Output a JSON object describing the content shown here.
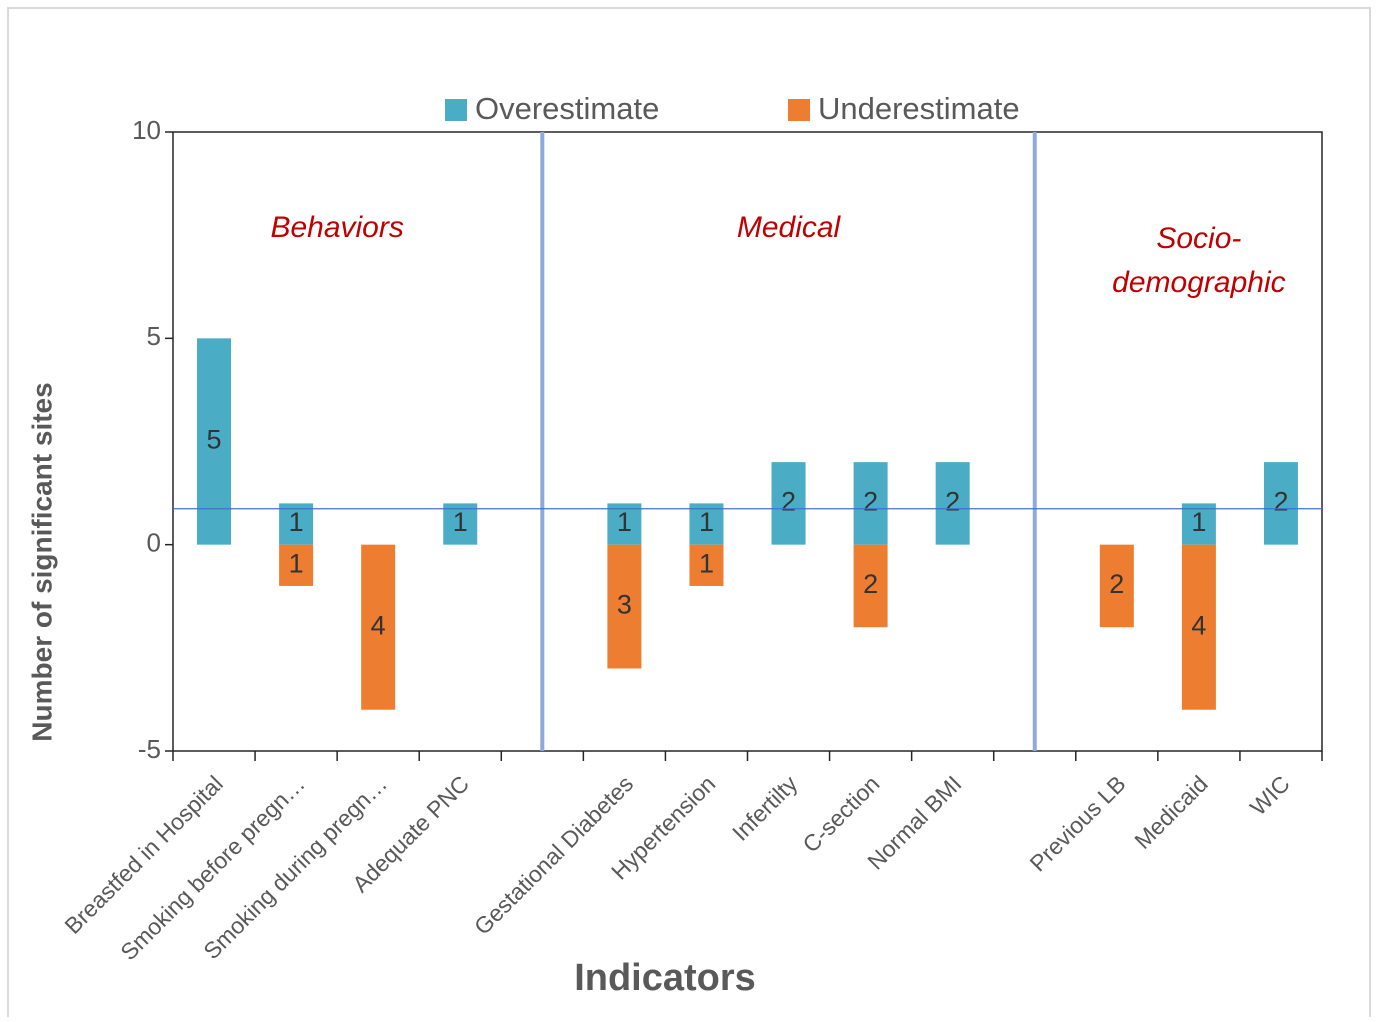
{
  "chart_data": {
    "type": "bar",
    "y_label": "Number of significant sites",
    "x_label": "Indicators",
    "categories": [
      "Breastfed in Hospital",
      "Smoking before pregn…",
      "Smoking during pregn…",
      "Adequate PNC",
      null,
      "Gestational Diabetes",
      "Hypertension",
      "Infertilty",
      "C-section",
      "Normal BMI",
      null,
      "Previous LB",
      "Medicaid",
      "WIC"
    ],
    "series": [
      {
        "name": "Overestimate",
        "color": "#4bacc6",
        "values": [
          5,
          1,
          null,
          1,
          null,
          1,
          1,
          2,
          2,
          2,
          null,
          null,
          1,
          2
        ]
      },
      {
        "name": "Underestimate",
        "color": "#ed7d31",
        "values": [
          null,
          -1,
          -4,
          null,
          null,
          -3,
          -1,
          null,
          -2,
          null,
          null,
          -2,
          -4,
          null
        ],
        "value_labels": [
          null,
          "1",
          "4",
          null,
          null,
          "3",
          "1",
          null,
          "2",
          null,
          null,
          "2",
          "4",
          null
        ]
      }
    ],
    "annotations": [
      [
        "Behaviors"
      ],
      [
        "Medical"
      ],
      [
        "Socio-",
        "demographic"
      ]
    ],
    "reference_line": 0.87,
    "ylim": [
      -5,
      10
    ],
    "yticks": [
      -5,
      0,
      5,
      10
    ],
    "legend": "top"
  }
}
